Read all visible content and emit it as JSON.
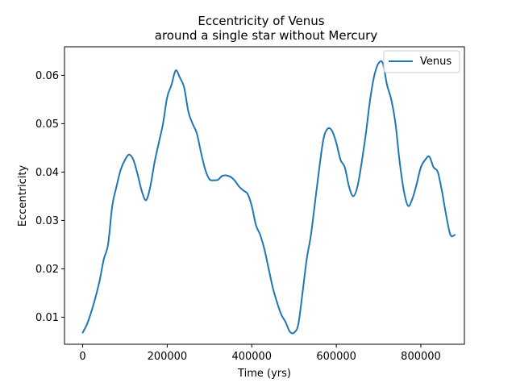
{
  "chart_data": {
    "type": "line",
    "title": "Eccentricity of Venus",
    "subtitle": "around a single star without Mercury",
    "xlabel": "Time (yrs)",
    "ylabel": "Eccentricity",
    "xlim": [
      -43000,
      903000
    ],
    "ylim": [
      0.0044,
      0.0659
    ],
    "xticks": [
      0,
      200000,
      400000,
      600000,
      800000
    ],
    "xtick_labels": [
      "0",
      "200000",
      "400000",
      "600000",
      "800000"
    ],
    "yticks": [
      0.01,
      0.02,
      0.03,
      0.04,
      0.05,
      0.06
    ],
    "ytick_labels": [
      "0.01",
      "0.02",
      "0.03",
      "0.04",
      "0.05",
      "0.06"
    ],
    "grid": false,
    "legend": {
      "position": "top-right"
    },
    "series": [
      {
        "name": "Venus",
        "color": "#1f77b4",
        "x": [
          0,
          10000,
          20000,
          30000,
          40000,
          50000,
          60000,
          70000,
          80000,
          90000,
          100000,
          110000,
          120000,
          130000,
          140000,
          150000,
          160000,
          170000,
          180000,
          190000,
          200000,
          210000,
          220000,
          230000,
          240000,
          250000,
          260000,
          270000,
          280000,
          290000,
          300000,
          310000,
          320000,
          330000,
          340000,
          350000,
          360000,
          370000,
          380000,
          390000,
          400000,
          410000,
          420000,
          430000,
          440000,
          450000,
          460000,
          470000,
          480000,
          490000,
          500000,
          510000,
          520000,
          530000,
          540000,
          550000,
          560000,
          570000,
          580000,
          590000,
          600000,
          610000,
          620000,
          630000,
          640000,
          650000,
          660000,
          670000,
          680000,
          690000,
          700000,
          710000,
          720000,
          730000,
          740000,
          750000,
          760000,
          770000,
          780000,
          790000,
          800000,
          810000,
          820000,
          830000,
          840000,
          850000,
          860000,
          870000,
          880000
        ],
        "y": [
          0.0068,
          0.0085,
          0.011,
          0.014,
          0.0175,
          0.022,
          0.025,
          0.033,
          0.037,
          0.0405,
          0.0425,
          0.0436,
          0.0425,
          0.0395,
          0.036,
          0.0342,
          0.037,
          0.042,
          0.046,
          0.05,
          0.0555,
          0.058,
          0.061,
          0.0595,
          0.0575,
          0.0525,
          0.05,
          0.048,
          0.044,
          0.0405,
          0.0385,
          0.0383,
          0.0384,
          0.0392,
          0.0393,
          0.039,
          0.0382,
          0.037,
          0.0362,
          0.0355,
          0.033,
          0.029,
          0.027,
          0.024,
          0.02,
          0.016,
          0.013,
          0.0105,
          0.009,
          0.007,
          0.0068,
          0.0085,
          0.015,
          0.022,
          0.027,
          0.034,
          0.041,
          0.047,
          0.049,
          0.0485,
          0.046,
          0.0425,
          0.041,
          0.037,
          0.035,
          0.037,
          0.042,
          0.048,
          0.055,
          0.06,
          0.0625,
          0.0625,
          0.058,
          0.055,
          0.05,
          0.042,
          0.036,
          0.033,
          0.0345,
          0.0375,
          0.041,
          0.0425,
          0.0432,
          0.041,
          0.04,
          0.036,
          0.031,
          0.027,
          0.027
        ]
      }
    ]
  }
}
